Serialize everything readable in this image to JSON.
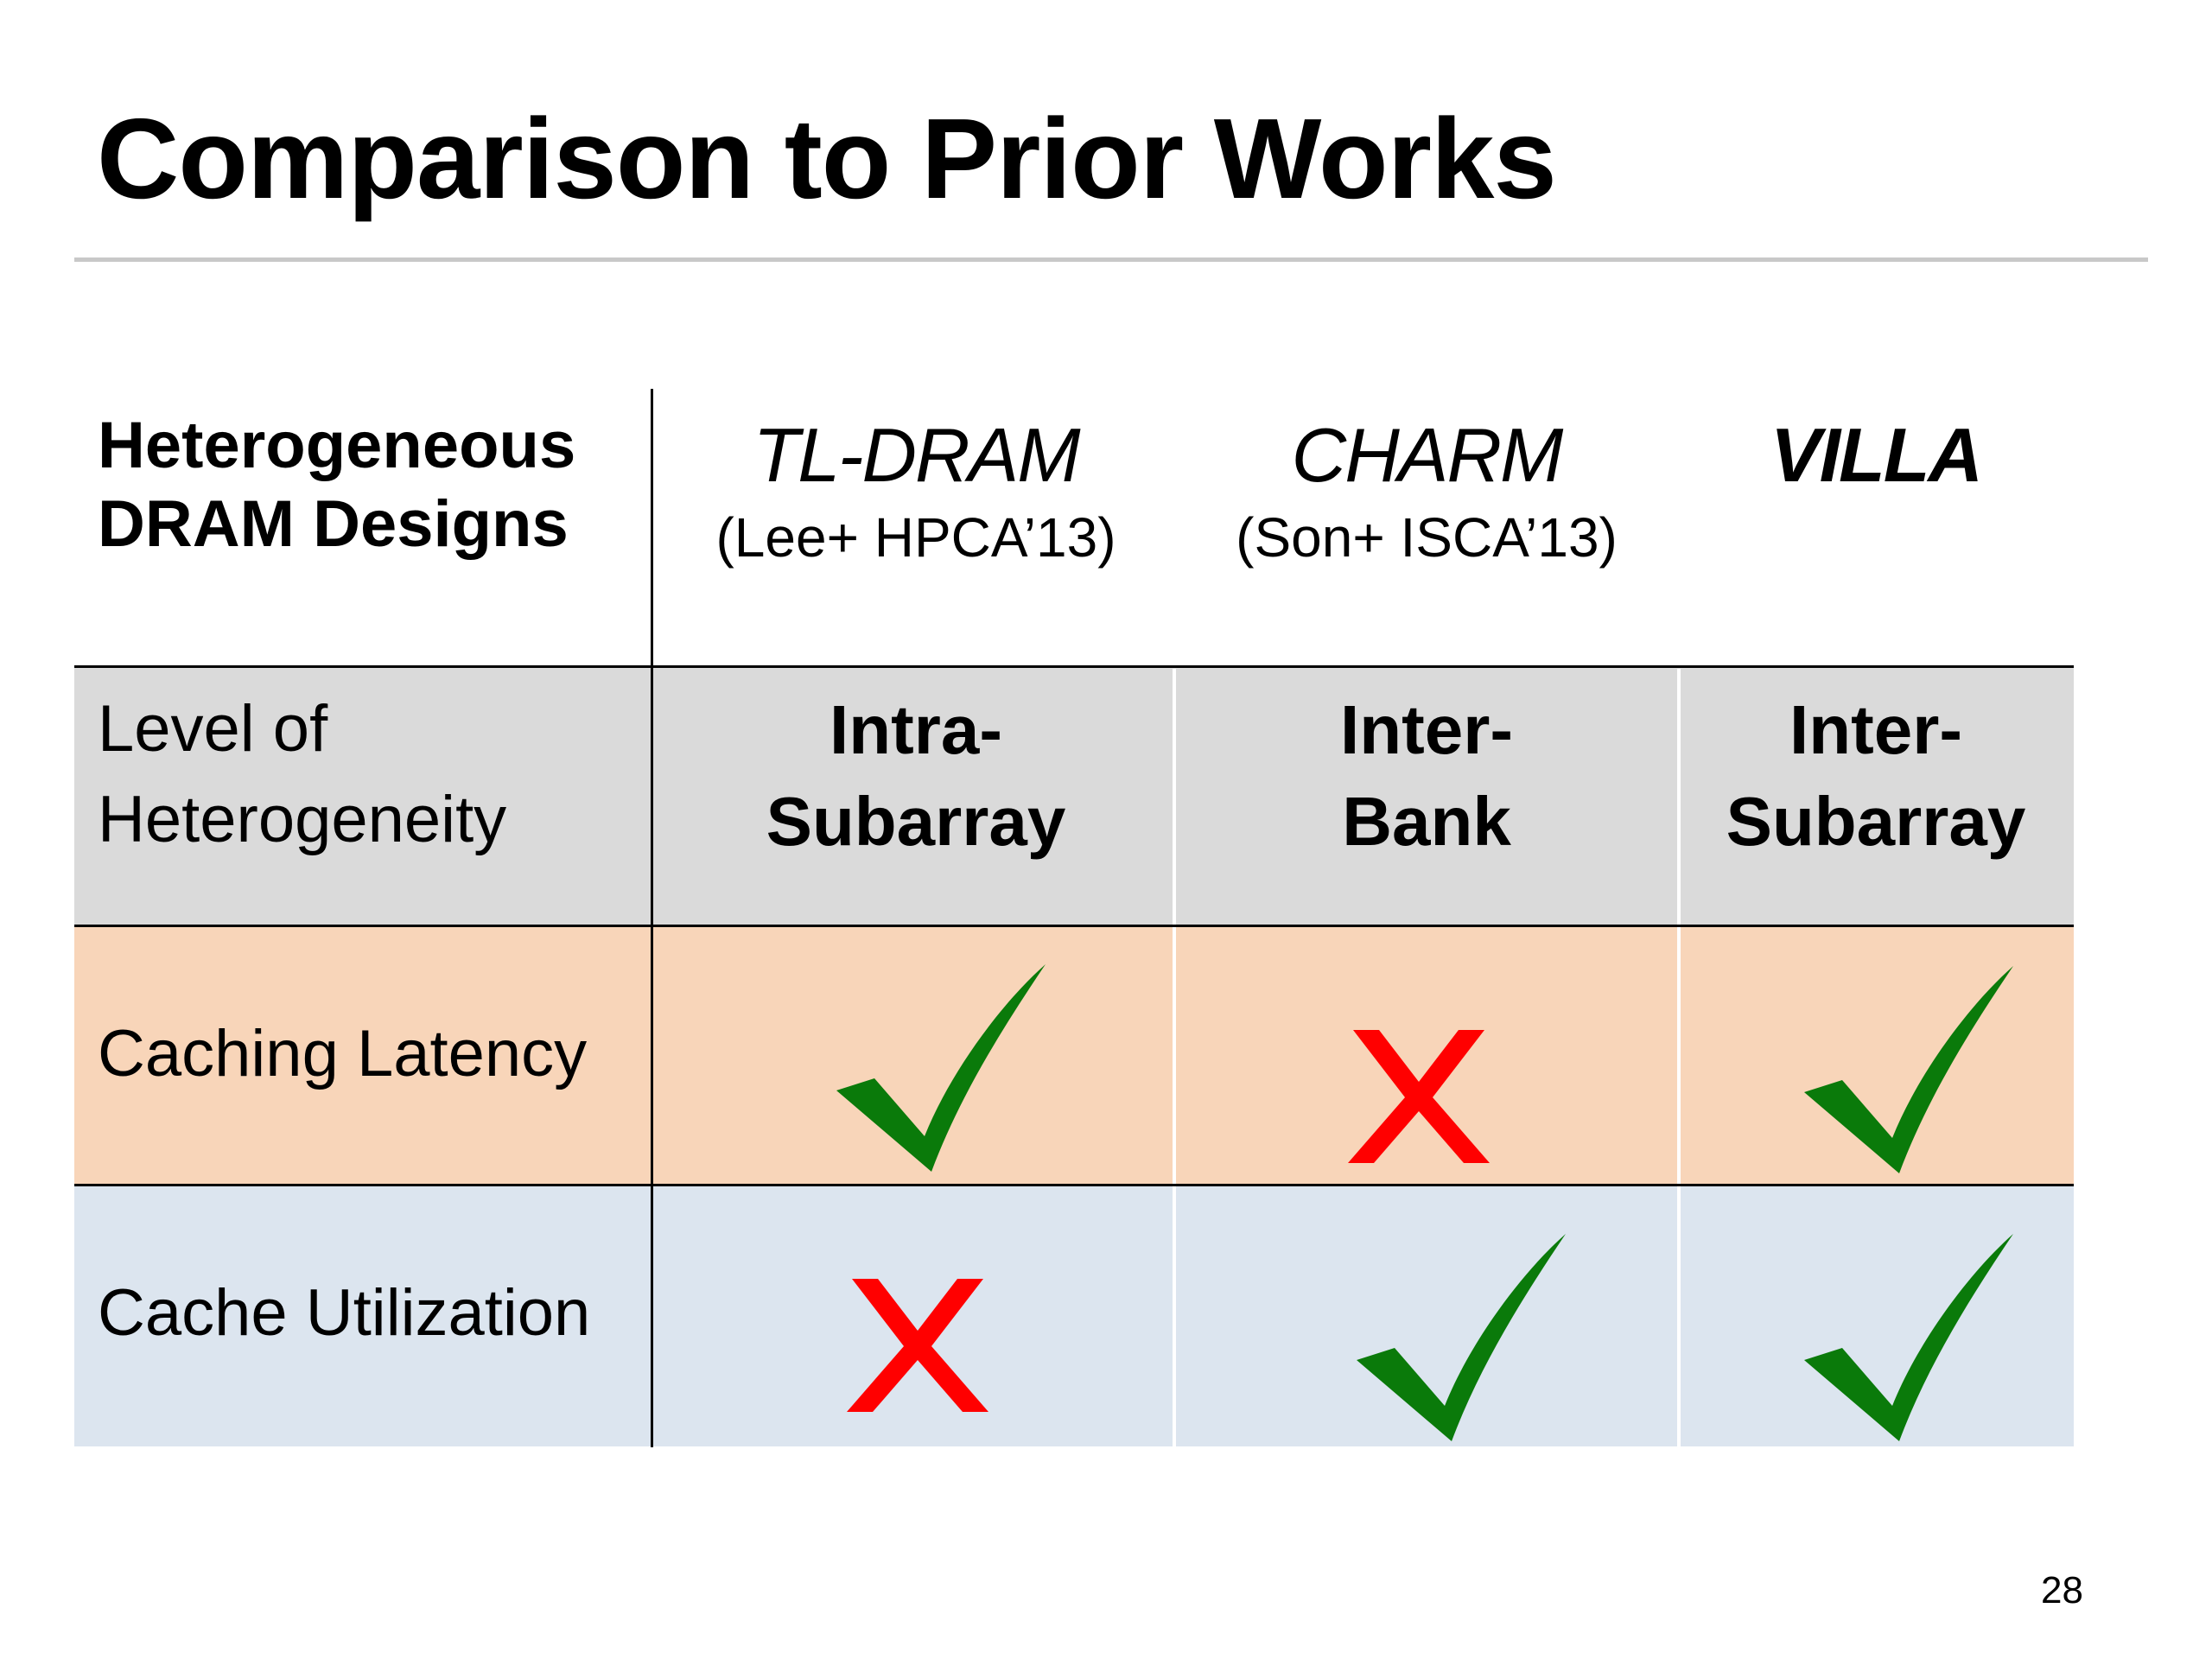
{
  "slide": {
    "title": "Comparison to Prior Works",
    "page_number": "28"
  },
  "table": {
    "header": {
      "label_line1": "Heterogeneous",
      "label_line2": "DRAM Designs",
      "columns": [
        {
          "name": "TL-DRAM",
          "ref": "(Lee+ HPCA’13)",
          "bold": false
        },
        {
          "name": "CHARM",
          "ref": "(Son+ ISCA’13)",
          "bold": false
        },
        {
          "name": "VILLA",
          "ref": "",
          "bold": true
        }
      ]
    },
    "rows": [
      {
        "label_line1": "Level of",
        "label_line2": "Heterogeneity",
        "color": "#dadada",
        "cells": [
          {
            "line1": "Intra-",
            "line2": "Subarray"
          },
          {
            "line1": "Inter-",
            "line2": "Bank"
          },
          {
            "line1": "Inter-",
            "line2": "Subarray"
          }
        ]
      },
      {
        "label": "Caching Latency",
        "color": "#f8d5b9",
        "marks": [
          "check",
          "cross",
          "check"
        ]
      },
      {
        "label": "Cache Utilization",
        "color": "#dce5ef",
        "marks": [
          "cross",
          "check",
          "check"
        ]
      }
    ],
    "mark_colors": {
      "check": "#0a7a0a",
      "cross": "#ff0000"
    },
    "icons": {
      "check": "check-icon",
      "cross": "cross-icon"
    }
  }
}
